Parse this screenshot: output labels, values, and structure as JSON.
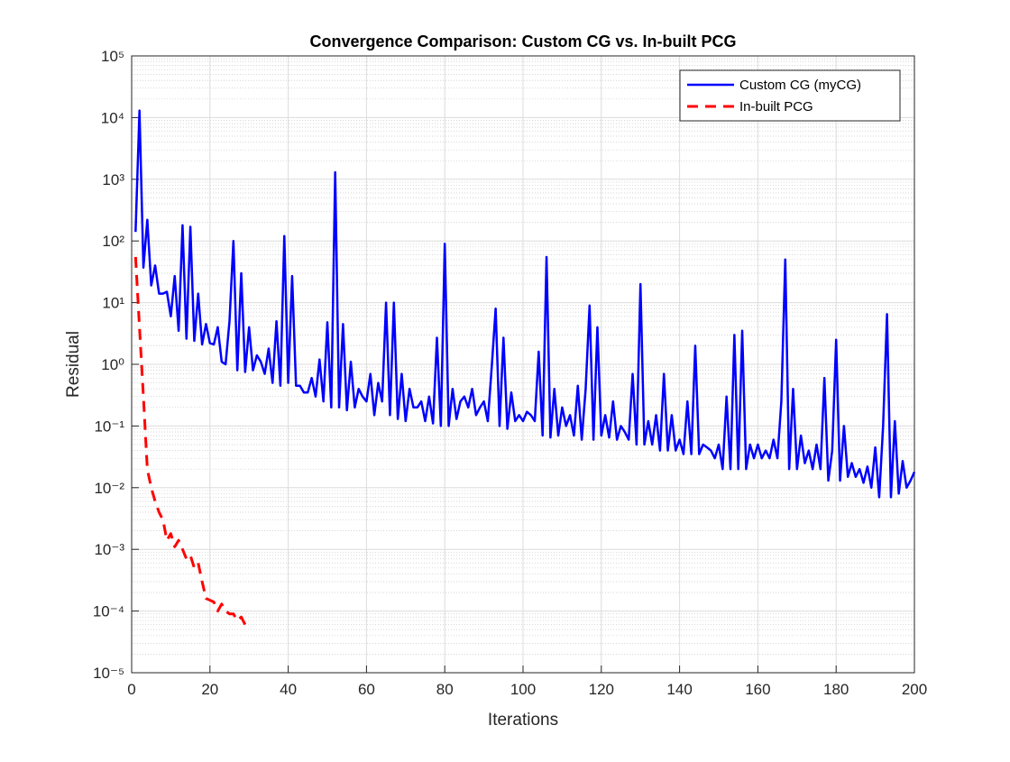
{
  "chart_data": {
    "type": "line",
    "title": "Convergence Comparison: Custom CG vs. In-built PCG",
    "x_label": "Iterations",
    "y_label": "Residual",
    "log_y": true,
    "grid": true,
    "minor_grid": true,
    "legend_position": "top-right",
    "xlim": [
      0,
      200
    ],
    "xticks": [
      0,
      20,
      40,
      60,
      80,
      100,
      120,
      140,
      160,
      180,
      200
    ],
    "ylim": [
      1e-05,
      100000
    ],
    "yticks": [
      {
        "value": 1e-05,
        "label": "10⁻⁵"
      },
      {
        "value": 0.0001,
        "label": "10⁻⁴"
      },
      {
        "value": 0.001,
        "label": "10⁻³"
      },
      {
        "value": 0.01,
        "label": "10⁻²"
      },
      {
        "value": 0.1,
        "label": "10⁻¹"
      },
      {
        "value": 1,
        "label": "10⁰"
      },
      {
        "value": 10,
        "label": "10¹"
      },
      {
        "value": 100,
        "label": "10²"
      },
      {
        "value": 1000,
        "label": "10³"
      },
      {
        "value": 10000,
        "label": "10⁴"
      },
      {
        "value": 100000,
        "label": "10⁵"
      }
    ],
    "series": [
      {
        "name": "Custom CG (myCG)",
        "color": "#0000ff",
        "dash": "solid",
        "x": [
          1,
          2,
          3,
          4,
          5,
          6,
          7,
          8,
          9,
          10,
          11,
          12,
          13,
          14,
          15,
          16,
          17,
          18,
          19,
          20,
          21,
          22,
          23,
          24,
          25,
          26,
          27,
          28,
          29,
          30,
          31,
          32,
          33,
          34,
          35,
          36,
          37,
          38,
          39,
          40,
          41,
          42,
          43,
          44,
          45,
          46,
          47,
          48,
          49,
          50,
          51,
          52,
          53,
          54,
          55,
          56,
          57,
          58,
          59,
          60,
          61,
          62,
          63,
          64,
          65,
          66,
          67,
          68,
          69,
          70,
          71,
          72,
          73,
          74,
          75,
          76,
          77,
          78,
          79,
          80,
          81,
          82,
          83,
          84,
          85,
          86,
          87,
          88,
          89,
          90,
          91,
          92,
          93,
          94,
          95,
          96,
          97,
          98,
          99,
          100,
          101,
          102,
          103,
          104,
          105,
          106,
          107,
          108,
          109,
          110,
          111,
          112,
          113,
          114,
          115,
          116,
          117,
          118,
          119,
          120,
          121,
          122,
          123,
          124,
          125,
          126,
          127,
          128,
          129,
          130,
          131,
          132,
          133,
          134,
          135,
          136,
          137,
          138,
          139,
          140,
          141,
          142,
          143,
          144,
          145,
          146,
          147,
          148,
          149,
          150,
          151,
          152,
          153,
          154,
          155,
          156,
          157,
          158,
          159,
          160,
          161,
          162,
          163,
          164,
          165,
          166,
          167,
          168,
          169,
          170,
          171,
          172,
          173,
          174,
          175,
          176,
          177,
          178,
          179,
          180,
          181,
          182,
          183,
          184,
          185,
          186,
          187,
          188,
          189,
          190,
          191,
          192,
          193,
          194,
          195,
          196,
          197,
          198,
          199,
          200
        ],
        "values": [
          140,
          13000,
          37,
          220,
          19,
          40,
          14,
          14,
          15,
          6,
          27,
          3.5,
          180,
          2.6,
          170,
          2.4,
          14,
          2.1,
          4.5,
          2.2,
          2.1,
          4,
          1.1,
          1,
          5,
          100,
          0.8,
          30,
          0.75,
          4,
          0.8,
          1.4,
          1.1,
          0.7,
          1.8,
          0.5,
          5,
          0.45,
          120,
          0.5,
          27,
          0.45,
          0.45,
          0.35,
          0.35,
          0.6,
          0.3,
          1.2,
          0.25,
          4.8,
          0.2,
          1300,
          0.2,
          4.5,
          0.18,
          1.1,
          0.2,
          0.4,
          0.3,
          0.25,
          0.7,
          0.15,
          0.5,
          0.25,
          10,
          0.15,
          10,
          0.13,
          0.7,
          0.12,
          0.4,
          0.2,
          0.2,
          0.25,
          0.12,
          0.3,
          0.11,
          2.7,
          0.1,
          90,
          0.1,
          0.4,
          0.13,
          0.25,
          0.3,
          0.2,
          0.4,
          0.15,
          0.2,
          0.25,
          0.12,
          0.9,
          8,
          0.1,
          2.7,
          0.09,
          0.35,
          0.12,
          0.15,
          0.12,
          0.17,
          0.15,
          0.12,
          1.6,
          0.07,
          55,
          0.065,
          0.4,
          0.07,
          0.2,
          0.1,
          0.15,
          0.07,
          0.45,
          0.06,
          0.4,
          9,
          0.06,
          4,
          0.07,
          0.15,
          0.065,
          0.25,
          0.06,
          0.1,
          0.08,
          0.06,
          0.7,
          0.05,
          20,
          0.05,
          0.12,
          0.05,
          0.15,
          0.04,
          0.7,
          0.04,
          0.15,
          0.04,
          0.06,
          0.035,
          0.25,
          0.035,
          2,
          0.035,
          0.05,
          0.045,
          0.04,
          0.03,
          0.05,
          0.02,
          0.3,
          0.02,
          3,
          0.02,
          3.5,
          0.02,
          0.05,
          0.03,
          0.05,
          0.03,
          0.04,
          0.03,
          0.06,
          0.03,
          0.25,
          50,
          0.02,
          0.4,
          0.02,
          0.07,
          0.025,
          0.04,
          0.02,
          0.05,
          0.02,
          0.6,
          0.013,
          0.04,
          2.5,
          0.013,
          0.1,
          0.015,
          0.025,
          0.015,
          0.02,
          0.012,
          0.022,
          0.01,
          0.045,
          0.007,
          0.1,
          6.5,
          0.007,
          0.12,
          0.008,
          0.027,
          0.01,
          0.013,
          0.018
        ]
      },
      {
        "name": "In-built PCG",
        "color": "#ff0000",
        "dash": "dashed",
        "x": [
          1,
          2,
          3,
          4,
          5,
          6,
          7,
          8,
          9,
          10,
          11,
          12,
          13,
          14,
          15,
          16,
          17,
          18,
          19,
          20,
          21,
          22,
          23,
          24,
          25,
          26,
          27,
          28,
          29
        ],
        "values": [
          55,
          4,
          0.3,
          0.02,
          0.01,
          0.006,
          0.004,
          0.003,
          0.0014,
          0.0018,
          0.0011,
          0.0014,
          0.001,
          0.0007,
          0.0008,
          0.0005,
          0.0006,
          0.0003,
          0.00016,
          0.00015,
          0.00014,
          0.0001,
          0.00013,
          0.0001,
          9e-05,
          9e-05,
          7e-05,
          8e-05,
          6e-05
        ]
      }
    ]
  }
}
